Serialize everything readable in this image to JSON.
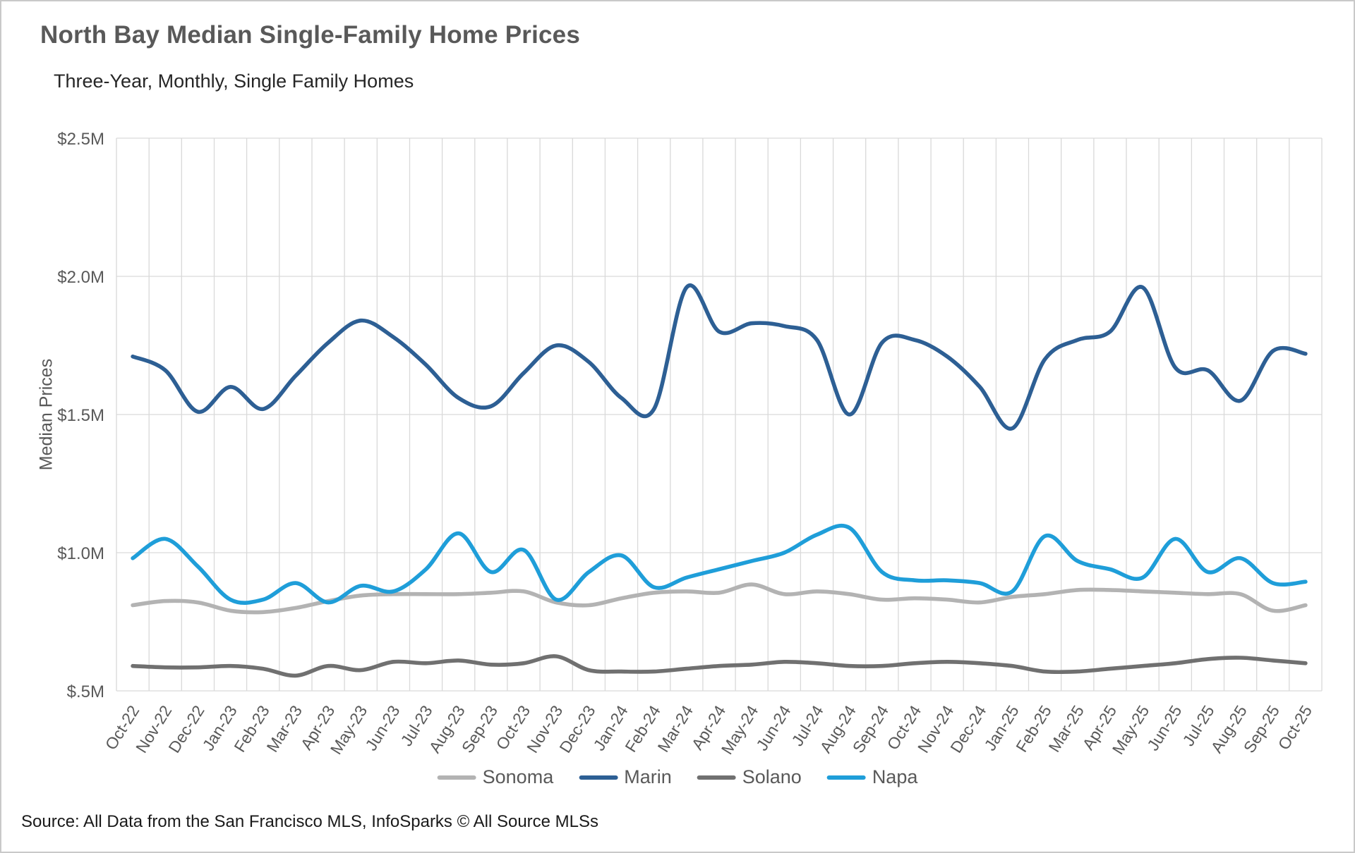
{
  "chart_data": {
    "type": "line",
    "title": "North Bay Median Single-Family Home Prices",
    "subtitle": "Three-Year, Monthly, Single Family Homes",
    "ylabel": "Median Prices",
    "units": "millions USD",
    "ylim": [
      0.5,
      2.5
    ],
    "y_ticks": [
      2.5,
      2.0,
      1.5,
      1.0,
      0.5
    ],
    "y_tick_labels": [
      "$2.5M",
      "$2.0M",
      "$1.5M",
      "$1.0M",
      "$.5M"
    ],
    "grid": true,
    "legend_position": "bottom",
    "x": [
      "Oct-22",
      "Nov-22",
      "Dec-22",
      "Jan-23",
      "Feb-23",
      "Mar-23",
      "Apr-23",
      "May-23",
      "Jun-23",
      "Jul-23",
      "Aug-23",
      "Sep-23",
      "Oct-23",
      "Nov-23",
      "Dec-23",
      "Jan-24",
      "Feb-24",
      "Mar-24",
      "Apr-24",
      "May-24",
      "Jun-24",
      "Jul-24",
      "Aug-24",
      "Sep-24",
      "Oct-24",
      "Nov-24",
      "Dec-24",
      "Jan-25",
      "Feb-25",
      "Mar-25",
      "Apr-25",
      "May-25",
      "Jun-25",
      "Jul-25",
      "Aug-25",
      "Sep-25",
      "Oct-25"
    ],
    "series": [
      {
        "name": "Sonoma",
        "color": "#b3b3b3",
        "values": [
          0.81,
          0.825,
          0.82,
          0.79,
          0.785,
          0.8,
          0.825,
          0.845,
          0.85,
          0.85,
          0.85,
          0.855,
          0.86,
          0.82,
          0.81,
          0.835,
          0.855,
          0.86,
          0.855,
          0.885,
          0.85,
          0.86,
          0.85,
          0.83,
          0.835,
          0.83,
          0.82,
          0.84,
          0.85,
          0.865,
          0.865,
          0.86,
          0.855,
          0.85,
          0.85,
          0.79,
          0.81
        ]
      },
      {
        "name": "Marin",
        "color": "#2d5f94",
        "values": [
          1.71,
          1.66,
          1.51,
          1.6,
          1.52,
          1.64,
          1.76,
          1.84,
          1.78,
          1.68,
          1.56,
          1.53,
          1.65,
          1.75,
          1.69,
          1.56,
          1.52,
          1.96,
          1.8,
          1.83,
          1.82,
          1.77,
          1.5,
          1.76,
          1.77,
          1.71,
          1.6,
          1.45,
          1.7,
          1.77,
          1.8,
          1.96,
          1.67,
          1.66,
          1.55,
          1.73,
          1.72
        ]
      },
      {
        "name": "Solano",
        "color": "#707070",
        "values": [
          0.59,
          0.585,
          0.585,
          0.59,
          0.58,
          0.555,
          0.59,
          0.575,
          0.605,
          0.6,
          0.61,
          0.595,
          0.6,
          0.625,
          0.575,
          0.57,
          0.57,
          0.58,
          0.59,
          0.595,
          0.605,
          0.6,
          0.59,
          0.59,
          0.6,
          0.605,
          0.6,
          0.59,
          0.57,
          0.57,
          0.58,
          0.59,
          0.6,
          0.615,
          0.62,
          0.61,
          0.6
        ]
      },
      {
        "name": "Napa",
        "color": "#1f9ed9",
        "values": [
          0.98,
          1.05,
          0.95,
          0.83,
          0.83,
          0.89,
          0.82,
          0.88,
          0.86,
          0.94,
          1.07,
          0.93,
          1.01,
          0.83,
          0.93,
          0.99,
          0.875,
          0.91,
          0.94,
          0.97,
          1.0,
          1.065,
          1.09,
          0.93,
          0.9,
          0.9,
          0.89,
          0.86,
          1.06,
          0.97,
          0.94,
          0.91,
          1.05,
          0.93,
          0.98,
          0.89,
          0.895
        ]
      }
    ]
  },
  "source_note": "Source: All Data from the San Francisco MLS, InfoSparks © All Source MLSs"
}
